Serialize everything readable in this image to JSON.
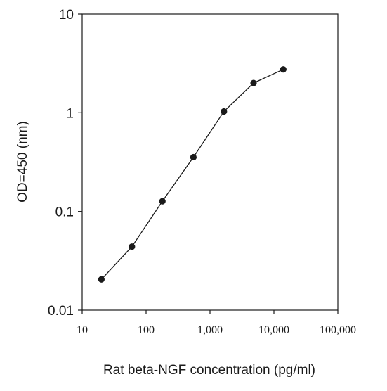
{
  "chart_data": {
    "type": "line",
    "title": "",
    "xlabel": "Rat beta-NGF concentration (pg/ml)",
    "ylabel": "OD=450 (nm)",
    "xscale": "log",
    "yscale": "log",
    "xlim": [
      10,
      100000
    ],
    "ylim": [
      0.01,
      10
    ],
    "xticks": [
      10,
      100,
      1000,
      10000,
      100000
    ],
    "xtick_labels": [
      "10",
      "100",
      "1,000",
      "10,000",
      "100,000"
    ],
    "yticks": [
      0.01,
      0.1,
      1,
      10
    ],
    "ytick_labels": [
      "0.01",
      "0.1",
      "1",
      "10"
    ],
    "grid": false,
    "legend": "none",
    "series": [
      {
        "color": "#1a1a1a",
        "marker": "circle",
        "x": [
          20,
          60,
          180,
          550,
          1650,
          4800,
          14000
        ],
        "y": [
          0.0205,
          0.044,
          0.127,
          0.355,
          1.03,
          2.0,
          2.75
        ]
      }
    ]
  }
}
